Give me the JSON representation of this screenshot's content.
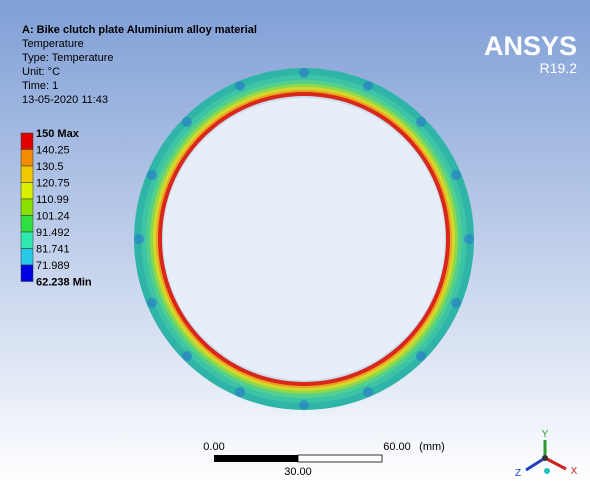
{
  "header": {
    "title": "A: Bike clutch plate Aluminium alloy  material",
    "lines": [
      "Temperature",
      "Type: Temperature",
      "Unit: °C",
      "Time: 1",
      "13-05-2020 11:43"
    ]
  },
  "legend": {
    "labels": [
      "150 Max",
      "140.25",
      "130.5",
      "120.75",
      "110.99",
      "101.24",
      "91.492",
      "81.741",
      "71.989",
      "62.238 Min"
    ]
  },
  "logo": {
    "name": "ANSYS",
    "version": "R19.2"
  },
  "scale_bar": {
    "start": "0.00",
    "end": "60.00",
    "unit": "(mm)",
    "middle": "30.00"
  },
  "triad": {
    "x": "X",
    "y": "Y",
    "z": "Z"
  }
}
